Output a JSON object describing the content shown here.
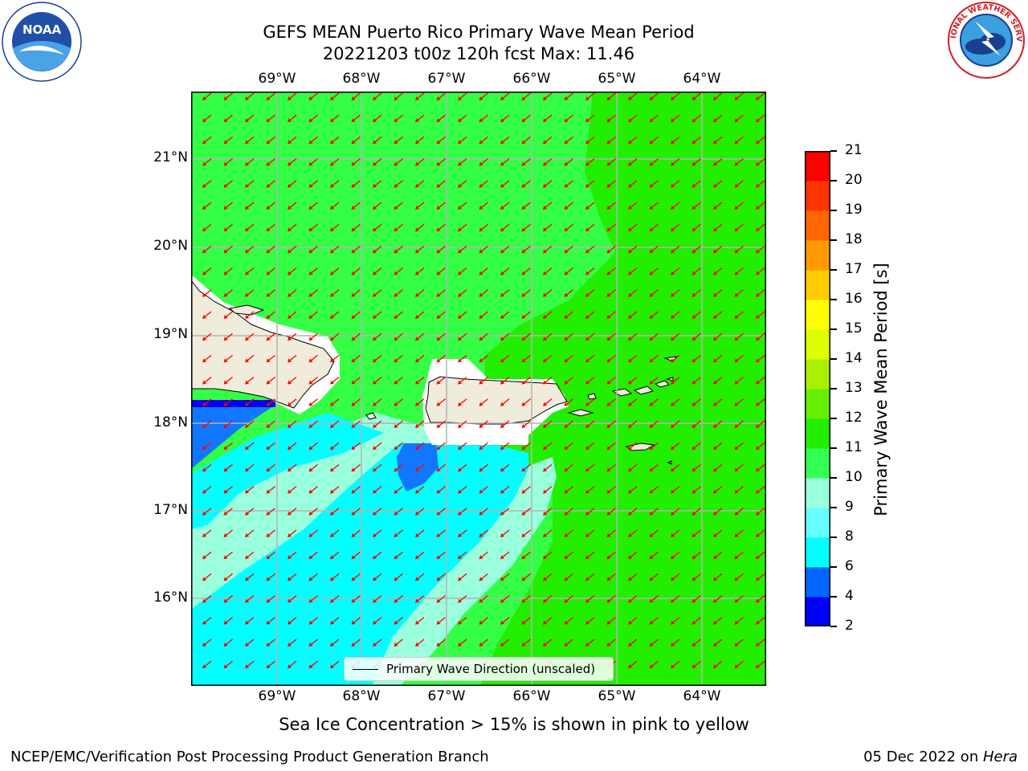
{
  "title": {
    "line1": "GEFS MEAN Puerto Rico Primary Wave Mean Period",
    "line2": "20221203 t00z 120h fcst   Max: 11.46"
  },
  "logos": {
    "left": {
      "icon": "noaa-logo-icon",
      "text": "NOAA"
    },
    "right": {
      "icon": "nws-logo-icon",
      "text": "NATIONAL WEATHER SERVICE"
    }
  },
  "map": {
    "lon_labels": [
      "69°W",
      "68°W",
      "67°W",
      "66°W",
      "65°W",
      "64°W"
    ],
    "lat_labels": [
      "21°N",
      "20°N",
      "19°N",
      "18°N",
      "17°N",
      "16°N"
    ],
    "field_colors": {
      "ocean_main": "#33ff44",
      "ocean_east": "#22ee00",
      "light_band": "#99ffdd",
      "cyan": "#00ffff",
      "blue": "#1177ff",
      "deep_blue": "#0000ee",
      "land": "#efecdb",
      "arrows": "#ff0000"
    }
  },
  "colorbar": {
    "label": "Primary Wave Mean Period [s]",
    "ticks": [
      "2",
      "4",
      "6",
      "8",
      "9",
      "10",
      "11",
      "12",
      "13",
      "14",
      "15",
      "16",
      "17",
      "18",
      "19",
      "20",
      "21"
    ],
    "colors": [
      "#0000ff",
      "#0066ff",
      "#00ffff",
      "#66ffff",
      "#99ffdd",
      "#33ff55",
      "#22ee00",
      "#66ee00",
      "#aaee00",
      "#ddff00",
      "#ffff00",
      "#ffcc00",
      "#ff9900",
      "#ff6600",
      "#ff3300",
      "#ff0000"
    ]
  },
  "legend": {
    "label": "Primary Wave Direction (unscaled)"
  },
  "ice_note": "Sea Ice Concentration > 15% is shown in pink to yellow",
  "footer": {
    "left": "NCEP/EMC/Verification Post Processing Product Generation Branch",
    "right_date": "05 Dec 2022 on ",
    "right_host": "Hera"
  }
}
